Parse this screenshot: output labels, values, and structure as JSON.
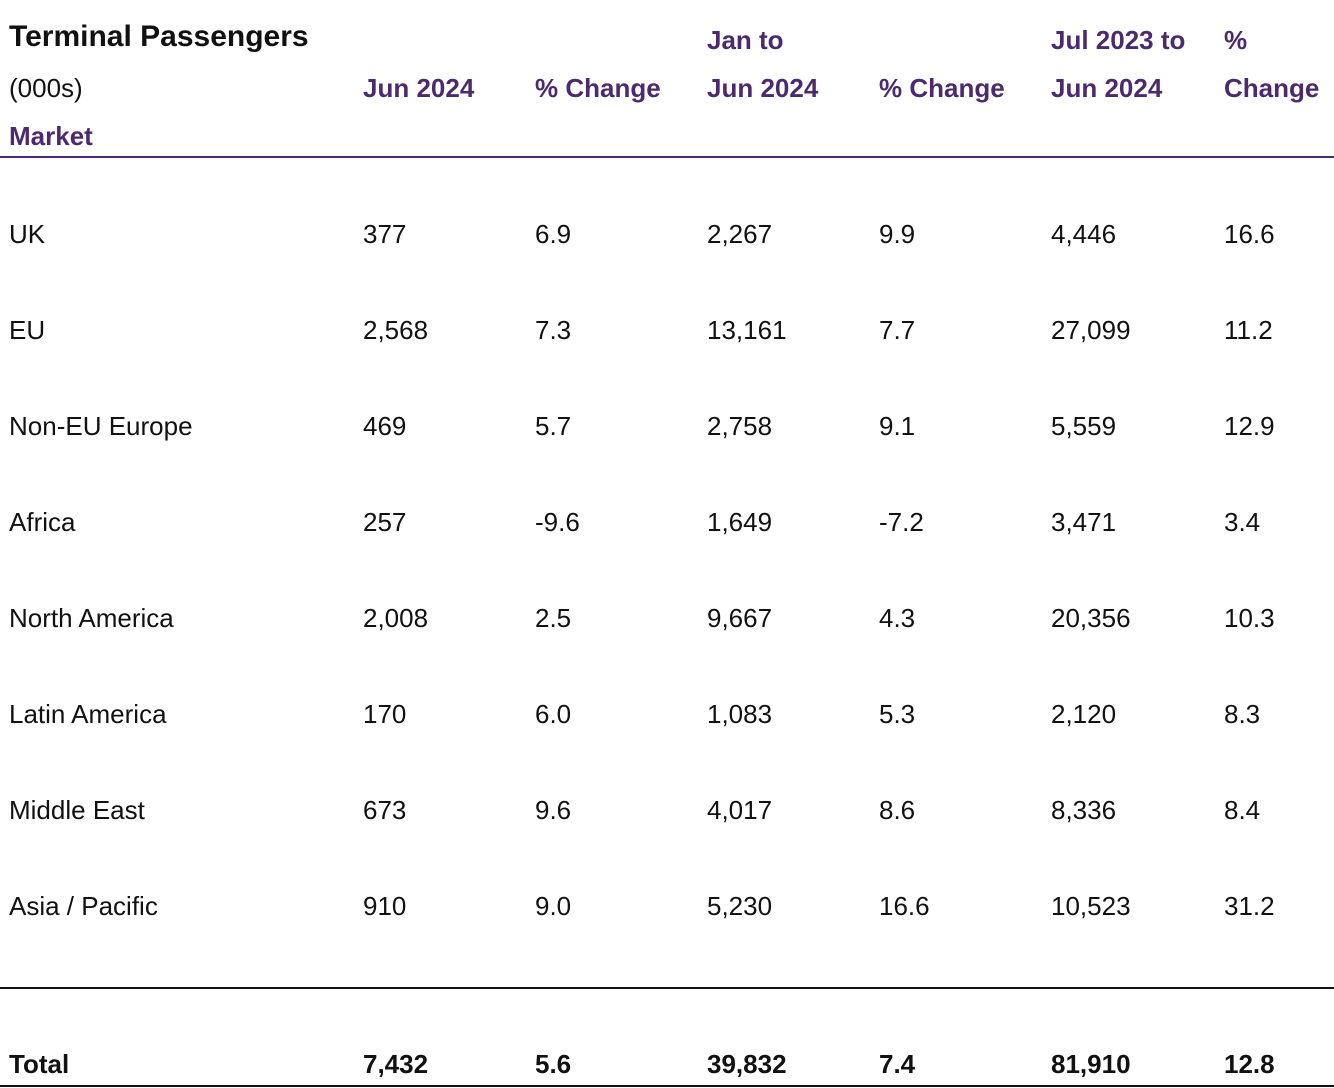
{
  "table": {
    "title": "Terminal Passengers",
    "subtitle": "(000s)",
    "market_label": "Market",
    "header_color": "#4b2a6e",
    "columns": [
      {
        "line1": "",
        "line2": "Jun 2024"
      },
      {
        "line1": "",
        "line2": "% Change"
      },
      {
        "line1": "Jan to",
        "line2": "Jun 2024"
      },
      {
        "line1": "",
        "line2": "% Change"
      },
      {
        "line1": "Jul 2023 to",
        "line2": "Jun 2024"
      },
      {
        "line1": "%",
        "line2": "Change"
      }
    ],
    "rows": [
      {
        "market": "UK",
        "values": [
          "377",
          "6.9",
          "2,267",
          "9.9",
          "4,446",
          "16.6"
        ]
      },
      {
        "market": "EU",
        "values": [
          "2,568",
          "7.3",
          "13,161",
          "7.7",
          "27,099",
          "11.2"
        ]
      },
      {
        "market": "Non-EU Europe",
        "values": [
          "469",
          "5.7",
          "2,758",
          "9.1",
          "5,559",
          "12.9"
        ]
      },
      {
        "market": "Africa",
        "values": [
          "257",
          "-9.6",
          "1,649",
          "-7.2",
          "3,471",
          "3.4"
        ]
      },
      {
        "market": "North America",
        "values": [
          "2,008",
          "2.5",
          "9,667",
          "4.3",
          "20,356",
          "10.3"
        ]
      },
      {
        "market": "Latin America",
        "values": [
          "170",
          "6.0",
          "1,083",
          "5.3",
          "2,120",
          "8.3"
        ]
      },
      {
        "market": "Middle East",
        "values": [
          "673",
          "9.6",
          "4,017",
          "8.6",
          "8,336",
          "8.4"
        ]
      },
      {
        "market": "Asia / Pacific",
        "values": [
          "910",
          "9.0",
          "5,230",
          "16.6",
          "10,523",
          "31.2"
        ]
      }
    ],
    "total": {
      "market": "Total",
      "values": [
        "7,432",
        "5.6",
        "39,832",
        "7.4",
        "81,910",
        "12.8"
      ]
    }
  }
}
